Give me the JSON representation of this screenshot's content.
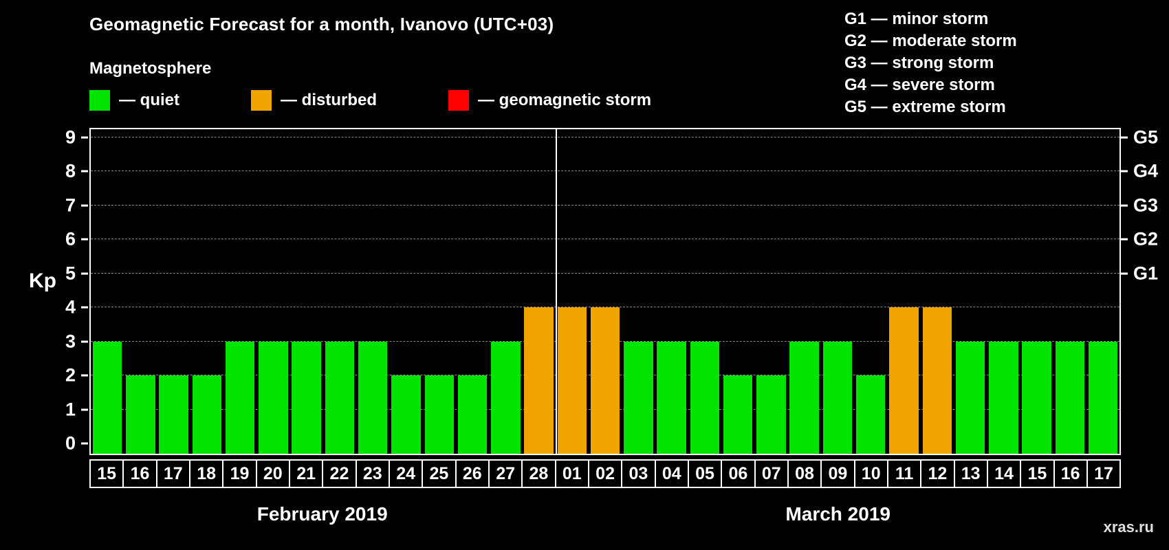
{
  "title": "Geomagnetic Forecast for a month, Ivanovo (UTC+03)",
  "subtitle": "Magnetosphere",
  "watermark": "xras.ru",
  "legend": [
    {
      "label": "— quiet",
      "color": "#00e400",
      "icon": "quiet-swatch"
    },
    {
      "label": "— disturbed",
      "color": "#f0a500",
      "icon": "disturbed-swatch"
    },
    {
      "label": "— geomagnetic storm",
      "color": "#ff0000",
      "icon": "storm-swatch"
    }
  ],
  "storm_scale": [
    {
      "text": "G1 — minor storm"
    },
    {
      "text": "G2 — moderate storm"
    },
    {
      "text": "G3 — strong storm"
    },
    {
      "text": "G4 — severe storm"
    },
    {
      "text": "G5 — extreme storm"
    }
  ],
  "chart_data": {
    "type": "bar",
    "title": "Geomagnetic Forecast for a month, Ivanovo (UTC+03)",
    "xlabel": "",
    "ylabel": "Kp",
    "ylim": [
      0,
      9
    ],
    "yticks": [
      0,
      1,
      2,
      3,
      4,
      5,
      6,
      7,
      8,
      9
    ],
    "gridline_values": [
      1,
      2,
      3,
      4,
      5,
      6,
      7,
      8,
      9
    ],
    "grid": true,
    "legend_position": "top-left",
    "right_axis": [
      {
        "label": "G1",
        "value": 5
      },
      {
        "label": "G2",
        "value": 6
      },
      {
        "label": "G3",
        "value": 7
      },
      {
        "label": "G4",
        "value": 8
      },
      {
        "label": "G5",
        "value": 9
      }
    ],
    "months": [
      {
        "label": "February 2019",
        "count": 14
      },
      {
        "label": "March 2019",
        "count": 17
      }
    ],
    "categories": [
      "15",
      "16",
      "17",
      "18",
      "19",
      "20",
      "21",
      "22",
      "23",
      "24",
      "25",
      "26",
      "27",
      "28",
      "01",
      "02",
      "03",
      "04",
      "05",
      "06",
      "07",
      "08",
      "09",
      "10",
      "11",
      "12",
      "13",
      "14",
      "15",
      "16",
      "17"
    ],
    "values": [
      3,
      2,
      2,
      2,
      3,
      3,
      3,
      3,
      3,
      2,
      2,
      2,
      3,
      4,
      4,
      4,
      3,
      3,
      3,
      2,
      2,
      3,
      3,
      2,
      4,
      4,
      3,
      3,
      3,
      3,
      3
    ],
    "statuses": [
      "quiet",
      "quiet",
      "quiet",
      "quiet",
      "quiet",
      "quiet",
      "quiet",
      "quiet",
      "quiet",
      "quiet",
      "quiet",
      "quiet",
      "quiet",
      "disturbed",
      "disturbed",
      "disturbed",
      "quiet",
      "quiet",
      "quiet",
      "quiet",
      "quiet",
      "quiet",
      "quiet",
      "quiet",
      "disturbed",
      "disturbed",
      "quiet",
      "quiet",
      "quiet",
      "quiet",
      "quiet"
    ],
    "status_colors": {
      "quiet": "#00e400",
      "disturbed": "#f0a500",
      "storm": "#ff0000"
    }
  }
}
